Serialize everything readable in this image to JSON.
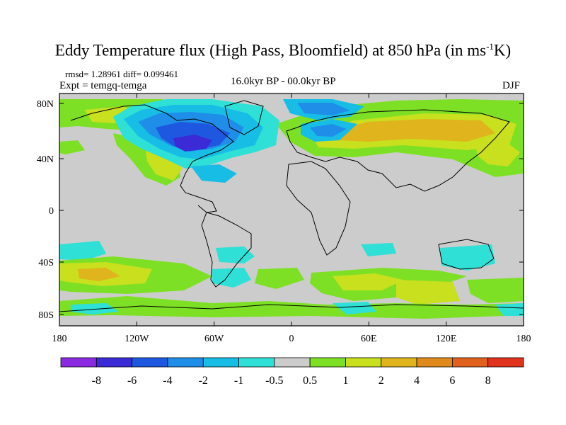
{
  "title": {
    "main": "Eddy Temperature flux (High Pass, Bloomfield) at 850 hPa (in ms",
    "sup": "-1",
    "end": "K)"
  },
  "info": {
    "rmsd_line": "rmsd= 1.28961 diff= 0.099461",
    "expt": "Expt = temgq-temga",
    "period": "16.0kyr BP - 00.0kyr BP",
    "season": "DJF"
  },
  "map": {
    "lon_ticks": [
      "180",
      "120W",
      "60W",
      "0",
      "60E",
      "120E",
      "180"
    ],
    "lat_ticks": [
      "80N",
      "40N",
      "0",
      "40S",
      "80S"
    ]
  },
  "colorbar": {
    "labels": [
      "-8",
      "-6",
      "-4",
      "-2",
      "-1",
      "-0.5",
      "0.5",
      "1",
      "2",
      "4",
      "6",
      "8"
    ],
    "colors": [
      "#8a2be2",
      "#3a2bd6",
      "#1e58e0",
      "#1f8ee8",
      "#18bde6",
      "#2ee0d6",
      "#cccccc",
      "#7de025",
      "#c8e01e",
      "#e0b41c",
      "#e08a1c",
      "#e0601c",
      "#e0321c"
    ]
  }
}
